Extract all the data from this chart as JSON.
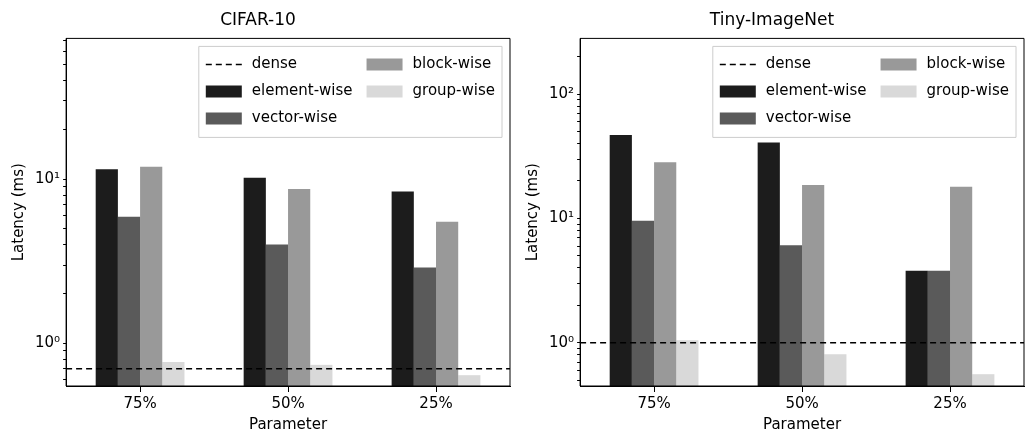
{
  "chart_data": [
    {
      "type": "bar",
      "title": "CIFAR-10",
      "xlabel": "Parameter",
      "ylabel": "Latency (ms)",
      "categories": [
        "75%",
        "50%",
        "25%"
      ],
      "log": "y",
      "ylim": [
        0.55,
        72
      ],
      "yticks": [
        {
          "value": 1,
          "label": "10⁰"
        },
        {
          "value": 10,
          "label": "10¹"
        },
        {
          "value": 0.6,
          "label": null
        },
        {
          "value": 0.7,
          "label": null
        },
        {
          "value": 0.8,
          "label": null
        },
        {
          "value": 0.9,
          "label": null
        },
        {
          "value": 2,
          "label": null
        },
        {
          "value": 3,
          "label": null
        },
        {
          "value": 4,
          "label": null
        },
        {
          "value": 5,
          "label": null
        },
        {
          "value": 6,
          "label": null
        },
        {
          "value": 7,
          "label": null
        },
        {
          "value": 8,
          "label": null
        },
        {
          "value": 9,
          "label": null
        },
        {
          "value": 20,
          "label": null
        },
        {
          "value": 30,
          "label": null
        },
        {
          "value": 40,
          "label": null
        },
        {
          "value": 50,
          "label": null
        },
        {
          "value": 60,
          "label": null
        },
        {
          "value": 70,
          "label": null
        }
      ],
      "series": [
        {
          "name": "element-wise",
          "color": "#1c1c1c",
          "values": [
            11.5,
            10.2,
            8.4
          ]
        },
        {
          "name": "vector-wise",
          "color": "#5a5a5a",
          "values": [
            5.9,
            4.0,
            2.9
          ]
        },
        {
          "name": "block-wise",
          "color": "#999999",
          "values": [
            11.9,
            8.7,
            5.5
          ]
        },
        {
          "name": "group-wise",
          "color": "#d9d9d9",
          "values": [
            0.77,
            0.74,
            0.64
          ]
        }
      ],
      "ref_lines": [
        {
          "axis": "y",
          "value": 0.7,
          "label": "dense",
          "color": "#000000",
          "line_style": "dashed"
        }
      ],
      "legend": "top right",
      "grid": false
    },
    {
      "type": "bar",
      "title": "Tiny-ImageNet",
      "xlabel": "Parameter",
      "ylabel": "Latency (ms)",
      "categories": [
        "75%",
        "50%",
        "25%"
      ],
      "log": "y",
      "ylim": [
        0.45,
        280
      ],
      "yticks": [
        {
          "value": 1,
          "label": "10⁰"
        },
        {
          "value": 10,
          "label": "10¹"
        },
        {
          "value": 100,
          "label": "10²"
        },
        {
          "value": 0.5,
          "label": null
        },
        {
          "value": 0.6,
          "label": null
        },
        {
          "value": 0.7,
          "label": null
        },
        {
          "value": 0.8,
          "label": null
        },
        {
          "value": 0.9,
          "label": null
        },
        {
          "value": 2,
          "label": null
        },
        {
          "value": 3,
          "label": null
        },
        {
          "value": 4,
          "label": null
        },
        {
          "value": 5,
          "label": null
        },
        {
          "value": 6,
          "label": null
        },
        {
          "value": 7,
          "label": null
        },
        {
          "value": 8,
          "label": null
        },
        {
          "value": 9,
          "label": null
        },
        {
          "value": 20,
          "label": null
        },
        {
          "value": 30,
          "label": null
        },
        {
          "value": 40,
          "label": null
        },
        {
          "value": 50,
          "label": null
        },
        {
          "value": 60,
          "label": null
        },
        {
          "value": 70,
          "label": null
        },
        {
          "value": 80,
          "label": null
        },
        {
          "value": 90,
          "label": null
        },
        {
          "value": 200,
          "label": null
        }
      ],
      "series": [
        {
          "name": "element-wise",
          "color": "#1c1c1c",
          "values": [
            46.8,
            40.8,
            3.8
          ]
        },
        {
          "name": "vector-wise",
          "color": "#5a5a5a",
          "values": [
            9.6,
            6.1,
            3.8
          ]
        },
        {
          "name": "block-wise",
          "color": "#999999",
          "values": [
            28.3,
            18.6,
            18.0
          ]
        },
        {
          "name": "group-wise",
          "color": "#d9d9d9",
          "values": [
            1.05,
            0.81,
            0.56
          ]
        }
      ],
      "ref_lines": [
        {
          "axis": "y",
          "value": 1.0,
          "label": "dense",
          "color": "#000000",
          "line_style": "dashed"
        }
      ],
      "legend": "top right",
      "grid": false
    }
  ]
}
